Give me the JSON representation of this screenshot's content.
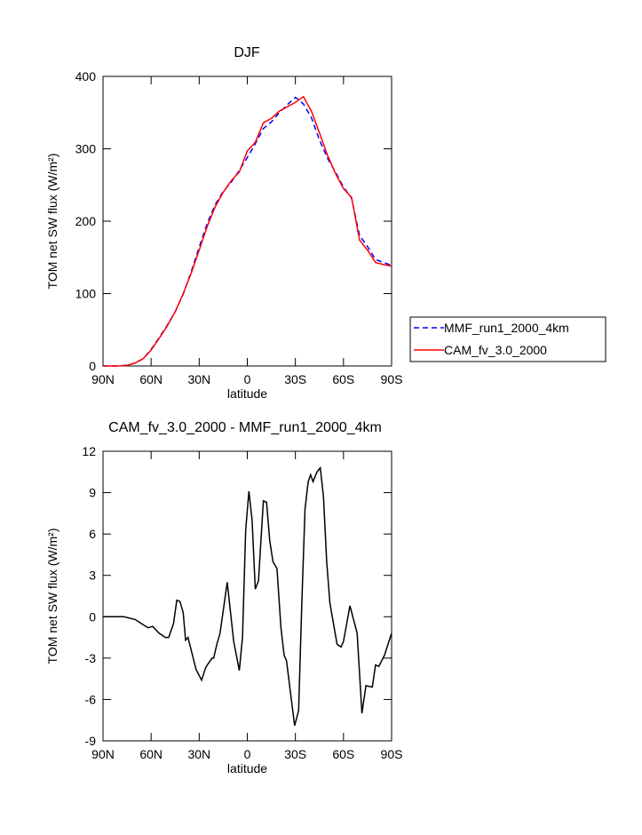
{
  "chart_data": [
    {
      "type": "line",
      "title": "DJF",
      "xlabel": "latitude",
      "ylabel": "TOM net SW flux (W/m²)",
      "x": [
        90,
        85,
        80,
        75,
        70,
        65,
        60,
        55,
        50,
        45,
        40,
        35,
        30,
        25,
        20,
        15,
        10,
        5,
        0,
        -5,
        -10,
        -15,
        -20,
        -25,
        -30,
        -35,
        -40,
        -45,
        -50,
        -55,
        -60,
        -65,
        -70,
        -75,
        -80,
        -85,
        -90
      ],
      "series": [
        {
          "name": "MMF_run1_2000_4km",
          "color": "#0000ff",
          "linestyle": "dashed",
          "values": [
            0,
            0,
            0,
            1,
            4,
            10,
            23,
            39,
            56,
            75,
            99,
            130,
            164,
            197,
            223,
            241,
            254,
            270,
            288,
            307,
            328,
            337,
            350,
            361,
            371,
            362,
            343,
            312,
            287,
            268,
            247,
            232,
            180,
            165,
            147,
            143,
            139
          ]
        },
        {
          "name": "CAM_fv_3.0_2000",
          "color": "#ff0000",
          "linestyle": "solid",
          "values": [
            0,
            0,
            0,
            1,
            4,
            10,
            22,
            38,
            55,
            75,
            100,
            128,
            160,
            193,
            220,
            240,
            256,
            268,
            297,
            309,
            336,
            342,
            352,
            358,
            364,
            372,
            352,
            322,
            291,
            266,
            245,
            233,
            174,
            160,
            143,
            140,
            138
          ]
        }
      ],
      "xlim": [
        90,
        -90
      ],
      "ylim": [
        0,
        400
      ],
      "xticks": [
        {
          "value": 90,
          "label": "90N"
        },
        {
          "value": 60,
          "label": "60N"
        },
        {
          "value": 30,
          "label": "30N"
        },
        0,
        {
          "value": -30,
          "label": "30S"
        },
        {
          "value": -60,
          "label": "60S"
        },
        {
          "value": -90,
          "label": "90S"
        }
      ],
      "yticks": [
        0,
        100,
        200,
        300,
        400
      ],
      "legend": "right"
    },
    {
      "type": "line",
      "title": "CAM_fv_3.0_2000 - MMF_run1_2000_4km",
      "xlabel": "latitude",
      "ylabel": "TOM net SW flux (W/m²)",
      "x": [
        90,
        77,
        70,
        66,
        62,
        59,
        55,
        51,
        49,
        46,
        44,
        42,
        40,
        38.5,
        37,
        32,
        28.5,
        26,
        25,
        22,
        21,
        19,
        17,
        12.5,
        8.5,
        5,
        3,
        1,
        -1,
        -3,
        -5,
        -7,
        -10,
        -12,
        -14,
        -16,
        -18.5,
        -21,
        -23,
        -24.5,
        -27,
        -29.5,
        -32,
        -34,
        -36,
        -38,
        -39.5,
        -41,
        -43.5,
        -45.5,
        -47.5,
        -49.5,
        -51.5,
        -56,
        -58.5,
        -60,
        -64,
        -68.5,
        -71.5,
        -74,
        -78,
        -80,
        -82,
        -85.5,
        -90
      ],
      "series": [
        {
          "name": "CAM_fv_3.0_2000 - MMF_run1_2000_4km",
          "color": "#000000",
          "linestyle": "solid",
          "values": [
            0,
            0,
            -0.2,
            -0.5,
            -0.8,
            -0.7,
            -1.2,
            -1.5,
            -1.5,
            -0.5,
            1.2,
            1.1,
            0.3,
            -1.7,
            -1.5,
            -3.8,
            -4.6,
            -3.7,
            -3.5,
            -3.0,
            -3.0,
            -2.0,
            -1.2,
            2.5,
            -1.8,
            -3.9,
            -1.5,
            6.3,
            9.1,
            7.0,
            2.0,
            2.6,
            8.4,
            8.3,
            5.5,
            4.0,
            3.5,
            -0.8,
            -2.8,
            -3.2,
            -5.6,
            -7.9,
            -6.8,
            1.0,
            7.8,
            9.8,
            10.3,
            9.8,
            10.5,
            10.8,
            8.7,
            4.0,
            1.0,
            -2.0,
            -2.2,
            -1.8,
            0.8,
            -1.2,
            -7.0,
            -5.0,
            -5.1,
            -3.5,
            -3.6,
            -2.8,
            -1.2
          ]
        }
      ],
      "xlim": [
        90,
        -90
      ],
      "ylim": [
        -9,
        12
      ],
      "xticks": [
        {
          "value": 90,
          "label": "90N"
        },
        {
          "value": 60,
          "label": "60N"
        },
        {
          "value": 30,
          "label": "30N"
        },
        0,
        {
          "value": -30,
          "label": "30S"
        },
        {
          "value": -60,
          "label": "60S"
        },
        {
          "value": -90,
          "label": "90S"
        }
      ],
      "yticks": [
        -9,
        -6,
        -3,
        0,
        3,
        6,
        9,
        12
      ]
    }
  ]
}
